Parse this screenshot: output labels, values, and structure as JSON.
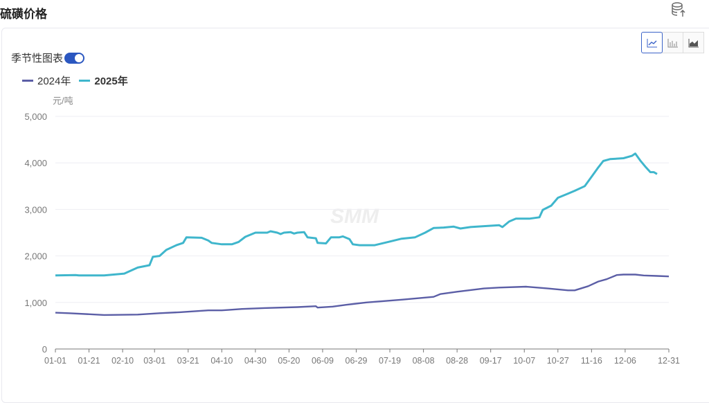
{
  "header": {
    "title": "硫磺价格"
  },
  "toolbar": {
    "season_label": "季节性图表",
    "season_on": true,
    "chart_types": [
      "line",
      "bar",
      "area"
    ],
    "active": "line"
  },
  "watermark": "SMM",
  "chart_data": {
    "type": "line",
    "ylabel": "元/吨",
    "ylim": [
      0,
      5000
    ],
    "yticks": [
      "0",
      "1,000",
      "2,000",
      "3,000",
      "4,000",
      "5,000"
    ],
    "ytick_values": [
      0,
      1000,
      2000,
      3000,
      4000,
      5000
    ],
    "xlim": [
      0,
      365
    ],
    "xticks": [
      "01-01",
      "01-21",
      "02-10",
      "03-01",
      "03-21",
      "04-10",
      "04-30",
      "05-20",
      "06-09",
      "06-29",
      "07-19",
      "08-08",
      "08-28",
      "09-17",
      "10-07",
      "10-27",
      "11-16",
      "12-06",
      "12-31"
    ],
    "xtick_days": [
      0,
      20,
      40,
      59,
      79,
      99,
      119,
      139,
      159,
      179,
      199,
      219,
      239,
      259,
      279,
      299,
      319,
      339,
      365
    ],
    "grid": true,
    "legend": "top-left",
    "series": [
      {
        "name": "2024年",
        "color": "#5b5ea6",
        "x": [
          0,
          8,
          29,
          49,
          62,
          74,
          91,
          99,
          103,
          111,
          124,
          144,
          155,
          156,
          165,
          173,
          185,
          206,
          225,
          229,
          239,
          255,
          264,
          280,
          293,
          305,
          309,
          317,
          323,
          328,
          334,
          338,
          345,
          350,
          358,
          365
        ],
        "y": [
          780,
          770,
          730,
          740,
          770,
          790,
          830,
          830,
          840,
          860,
          880,
          900,
          920,
          890,
          910,
          950,
          1000,
          1060,
          1120,
          1180,
          1230,
          1300,
          1320,
          1340,
          1300,
          1260,
          1260,
          1350,
          1450,
          1500,
          1590,
          1600,
          1600,
          1580,
          1570,
          1560
        ]
      },
      {
        "name": "2025年",
        "color": "#3fb6cc",
        "x": [
          0,
          12,
          14,
          29,
          41,
          49,
          56,
          58,
          62,
          66,
          72,
          76,
          78,
          87,
          91,
          93,
          99,
          105,
          109,
          113,
          119,
          126,
          128,
          132,
          134,
          136,
          140,
          142,
          144,
          148,
          150,
          155,
          156,
          161,
          164,
          169,
          171,
          175,
          177,
          181,
          190,
          198,
          206,
          214,
          220,
          225,
          231,
          237,
          241,
          247,
          255,
          264,
          266,
          270,
          274,
          282,
          288,
          290,
          295,
          299,
          305,
          309,
          315,
          319,
          323,
          326,
          330,
          338,
          343,
          345,
          348,
          351,
          354,
          356,
          358
        ],
        "y": [
          1580,
          1590,
          1580,
          1580,
          1620,
          1750,
          1800,
          1980,
          2000,
          2130,
          2230,
          2280,
          2400,
          2390,
          2330,
          2280,
          2250,
          2250,
          2300,
          2410,
          2500,
          2500,
          2530,
          2500,
          2470,
          2500,
          2510,
          2480,
          2500,
          2510,
          2400,
          2380,
          2280,
          2270,
          2400,
          2400,
          2420,
          2360,
          2250,
          2230,
          2230,
          2300,
          2370,
          2400,
          2500,
          2600,
          2610,
          2630,
          2590,
          2620,
          2640,
          2660,
          2620,
          2740,
          2800,
          2800,
          2830,
          2990,
          3080,
          3250,
          3340,
          3400,
          3500,
          3700,
          3900,
          4040,
          4080,
          4100,
          4150,
          4200,
          4050,
          3920,
          3800,
          3800,
          3760
        ]
      }
    ]
  }
}
